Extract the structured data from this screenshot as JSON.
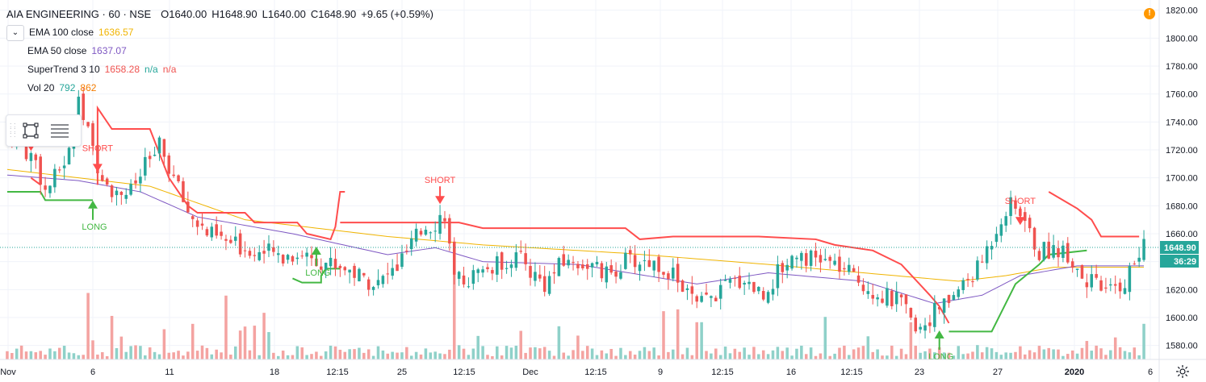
{
  "header": {
    "symbol": "AIA ENGINEERING · 60 · NSE",
    "open": "O1640.00",
    "high": "H1648.90",
    "low": "L1640.00",
    "close": "C1648.90",
    "change": "+9.65 (+0.59%)"
  },
  "indicators": [
    {
      "label": "EMA 100 close",
      "value": "1636.57",
      "color": "#f0b400"
    },
    {
      "label": "EMA 50 close",
      "value": "1637.07",
      "color": "#7e57c2"
    },
    {
      "label": "SuperTrend 3 10",
      "value": "1658.28",
      "extra1": "n/a",
      "extra2": "n/a",
      "color": "#ef5350",
      "color2": "#26a69a"
    },
    {
      "label": "Vol 20",
      "value": "792",
      "value2": "862",
      "color": "#26a69a",
      "color2": "#f57c00"
    }
  ],
  "price_axis": {
    "ticks": [
      "1820.00",
      "1800.00",
      "1780.00",
      "1760.00",
      "1740.00",
      "1720.00",
      "1700.00",
      "1680.00",
      "1660.00",
      "1640.00",
      "1620.00",
      "1600.00",
      "1580.00"
    ],
    "last_price_label": "1648.90",
    "countdown_label": "36:29"
  },
  "time_axis": {
    "ticks": [
      "Nov",
      "6",
      "11",
      "18",
      "12:15",
      "25",
      "12:15",
      "Dec",
      "12:15",
      "9",
      "12:15",
      "16",
      "12:15",
      "23",
      "27",
      "2020",
      "6"
    ]
  },
  "signal_labels": {
    "short": "SHORT",
    "long": "LONG"
  },
  "alert_icon": "!",
  "colors": {
    "up": "#26a69a",
    "down": "#ef5350",
    "ema100": "#f0b400",
    "ema50": "#7e57c2",
    "st_red": "#ff4d4d",
    "st_green": "#43b843",
    "vol_up": "#8fd1c9",
    "vol_down": "#f4a3a1",
    "price_label_bg": "#26a69a",
    "grid": "#f0f3fa"
  },
  "chart_data": {
    "type": "candlestick",
    "ylim": [
      1570,
      1825
    ],
    "close_path": [
      [
        0,
        1735
      ],
      [
        3,
        1722
      ],
      [
        6,
        1712
      ],
      [
        8,
        1690
      ],
      [
        10,
        1700
      ],
      [
        13,
        1718
      ],
      [
        15,
        1765
      ],
      [
        16,
        1742
      ],
      [
        19,
        1710
      ],
      [
        22,
        1692
      ],
      [
        26,
        1690
      ],
      [
        29,
        1708
      ],
      [
        32,
        1722
      ],
      [
        35,
        1700
      ],
      [
        38,
        1676
      ],
      [
        42,
        1660
      ],
      [
        46,
        1654
      ],
      [
        52,
        1648
      ],
      [
        58,
        1644
      ],
      [
        62,
        1646
      ],
      [
        67,
        1640
      ],
      [
        71,
        1636
      ],
      [
        75,
        1628
      ],
      [
        78,
        1624
      ],
      [
        82,
        1636
      ],
      [
        85,
        1652
      ],
      [
        88,
        1666
      ],
      [
        90,
        1668
      ],
      [
        92,
        1675
      ],
      [
        94,
        1625
      ],
      [
        97,
        1628
      ],
      [
        102,
        1636
      ],
      [
        107,
        1644
      ],
      [
        111,
        1630
      ],
      [
        113,
        1624
      ],
      [
        117,
        1640
      ],
      [
        122,
        1638
      ],
      [
        126,
        1630
      ],
      [
        130,
        1640
      ],
      [
        135,
        1640
      ],
      [
        139,
        1634
      ],
      [
        142,
        1622
      ],
      [
        145,
        1608
      ],
      [
        148,
        1614
      ],
      [
        152,
        1624
      ],
      [
        155,
        1628
      ],
      [
        159,
        1616
      ],
      [
        162,
        1632
      ],
      [
        166,
        1648
      ],
      [
        169,
        1642
      ],
      [
        172,
        1640
      ],
      [
        175,
        1636
      ],
      [
        179,
        1626
      ],
      [
        184,
        1616
      ],
      [
        188,
        1610
      ],
      [
        190,
        1596
      ],
      [
        192,
        1594
      ],
      [
        195,
        1604
      ],
      [
        198,
        1612
      ],
      [
        200,
        1620
      ],
      [
        204,
        1634
      ],
      [
        207,
        1656
      ],
      [
        209,
        1672
      ],
      [
        211,
        1680
      ],
      [
        213,
        1676
      ],
      [
        215,
        1660
      ],
      [
        217,
        1646
      ],
      [
        220,
        1650
      ],
      [
        223,
        1646
      ],
      [
        226,
        1630
      ],
      [
        229,
        1622
      ],
      [
        232,
        1618
      ],
      [
        235,
        1626
      ],
      [
        237,
        1640
      ],
      [
        239,
        1650
      ]
    ],
    "volume_spikes": [
      [
        17,
        0.75
      ],
      [
        46,
        0.72
      ],
      [
        94,
        1.0
      ],
      [
        145,
        0.42
      ],
      [
        172,
        0.48
      ],
      [
        190,
        0.4
      ]
    ],
    "ema100_path": [
      [
        0,
        1706
      ],
      [
        15,
        1700
      ],
      [
        30,
        1694
      ],
      [
        50,
        1670
      ],
      [
        80,
        1658
      ],
      [
        100,
        1652
      ],
      [
        130,
        1646
      ],
      [
        160,
        1638
      ],
      [
        180,
        1632
      ],
      [
        200,
        1626
      ],
      [
        210,
        1630
      ],
      [
        220,
        1636
      ],
      [
        239,
        1636
      ]
    ],
    "ema50_path": [
      [
        0,
        1702
      ],
      [
        15,
        1698
      ],
      [
        28,
        1690
      ],
      [
        40,
        1672
      ],
      [
        60,
        1660
      ],
      [
        80,
        1645
      ],
      [
        90,
        1650
      ],
      [
        100,
        1640
      ],
      [
        120,
        1638
      ],
      [
        145,
        1624
      ],
      [
        160,
        1632
      ],
      [
        180,
        1626
      ],
      [
        195,
        1610
      ],
      [
        205,
        1616
      ],
      [
        213,
        1630
      ],
      [
        225,
        1637
      ],
      [
        239,
        1637
      ]
    ],
    "supertrend_segments": [
      {
        "color": "red",
        "points": [
          [
            5,
            1700
          ],
          [
            7,
            1695
          ]
        ]
      },
      {
        "color": "green",
        "points": [
          [
            0,
            1690
          ],
          [
            5,
            1690
          ],
          [
            7,
            1690
          ],
          [
            8,
            1684
          ],
          [
            12,
            1684
          ],
          [
            18,
            1684
          ]
        ]
      },
      {
        "color": "red",
        "points": [
          [
            19,
            1695
          ],
          [
            19,
            1750
          ],
          [
            22,
            1735
          ],
          [
            30,
            1735
          ],
          [
            34,
            1700
          ],
          [
            38,
            1680
          ],
          [
            40,
            1675
          ],
          [
            50,
            1675
          ],
          [
            52,
            1668
          ],
          [
            61,
            1668
          ],
          [
            63,
            1660
          ],
          [
            68,
            1656
          ],
          [
            69,
            1665
          ],
          [
            70,
            1690
          ],
          [
            71,
            1690
          ]
        ]
      },
      {
        "color": "green",
        "points": [
          [
            60,
            1628
          ],
          [
            62,
            1625
          ],
          [
            66,
            1625
          ],
          [
            66,
            1630
          ],
          [
            67,
            1635
          ],
          [
            70,
            1635
          ]
        ]
      },
      {
        "color": "red",
        "points": [
          [
            70,
            1668
          ],
          [
            82,
            1668
          ],
          [
            95,
            1668
          ],
          [
            100,
            1664
          ],
          [
            120,
            1664
          ],
          [
            130,
            1664
          ],
          [
            133,
            1656
          ],
          [
            140,
            1658
          ],
          [
            158,
            1658
          ],
          [
            170,
            1656
          ],
          [
            174,
            1652
          ],
          [
            182,
            1648
          ],
          [
            188,
            1638
          ],
          [
            194,
            1616
          ],
          [
            196,
            1608
          ],
          [
            198,
            1596
          ]
        ]
      },
      {
        "color": "green",
        "points": [
          [
            198,
            1590
          ],
          [
            207,
            1590
          ],
          [
            212,
            1624
          ],
          [
            217,
            1638
          ],
          [
            219,
            1645
          ],
          [
            227,
            1648
          ]
        ]
      },
      {
        "color": "red",
        "points": [
          [
            219,
            1690
          ],
          [
            225,
            1678
          ],
          [
            228,
            1670
          ],
          [
            230,
            1658
          ],
          [
            238,
            1658
          ]
        ]
      }
    ],
    "signals": [
      {
        "type": "short",
        "price": 1725,
        "bar": 5
      },
      {
        "type": "short",
        "price": 1710,
        "bar": 19
      },
      {
        "type": "short",
        "price": 1687,
        "bar": 91
      },
      {
        "type": "short",
        "price": 1672,
        "bar": 213
      },
      {
        "type": "long",
        "price": 1678,
        "bar": 18
      },
      {
        "type": "long",
        "price": 1645,
        "bar": 65
      },
      {
        "type": "long",
        "price": 1585,
        "bar": 196
      }
    ],
    "bar_count": 240
  }
}
